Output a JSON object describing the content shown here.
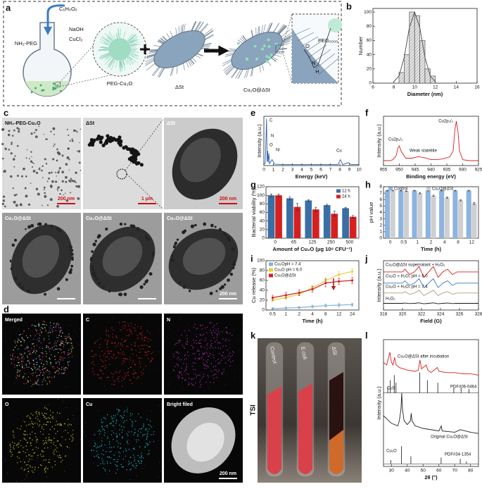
{
  "panels": {
    "a": {
      "label": "a",
      "texts": [
        "C₆H₈O₆",
        "NaOH",
        "CuCl₂",
        "NH₂-PEG",
        "PEG-Cu₂O",
        "ΔSt",
        "Cu₂O@ΔSt",
        "PEG₂₀₀₀",
        "O",
        "N",
        "H"
      ]
    },
    "b": {
      "label": "b",
      "chart": {
        "type": "histogram",
        "xlabel": "Diameter (nm)",
        "ylabel": "Number",
        "bins": [
          8.5,
          9,
          9.5,
          10,
          10.5,
          11,
          11.5,
          12
        ],
        "counts": [
          15,
          40,
          100,
          95,
          60,
          20,
          10
        ],
        "color": "#d9d9d9",
        "fit": {
          "x": [
            8,
            8.5,
            9,
            9.5,
            10,
            10.5,
            11,
            11.5,
            12
          ],
          "values": [
            2,
            10,
            36,
            78,
            100,
            78,
            36,
            10,
            2
          ],
          "color": "#555555"
        },
        "xlim": [
          6,
          16
        ],
        "xticks": [
          6,
          8,
          10,
          12,
          14,
          16
        ],
        "ylim": [
          0,
          105
        ],
        "yticks": [
          0,
          20,
          40,
          60,
          80,
          100
        ]
      }
    },
    "c": {
      "label": "c",
      "texts": [
        "NH₂-PEG-Cu₂O",
        "ΔSt",
        "ΔSt",
        "200 nm",
        "1 μm",
        "200 nm",
        "Cu₂O@ΔSt",
        "Cu₂O@ΔSt",
        "Cu₂O@ΔSt",
        "200 nm"
      ]
    },
    "d": {
      "label": "d",
      "texts": [
        "Merged",
        "C",
        "N",
        "O",
        "Cu",
        "Bright filed",
        "200 nm"
      ]
    },
    "e": {
      "label": "e",
      "chart": {
        "type": "spectrum",
        "xlabel": "Energy (keV)",
        "ylabel": "Intensity (a.u.)",
        "annotations": [
          "C",
          "N",
          "O",
          "Ni",
          "Cu"
        ],
        "series": [
          {
            "color": "#2a62b0",
            "x": [
              0,
              0.15,
              0.28,
              0.35,
              0.39,
              0.45,
              0.52,
              0.6,
              0.85,
              0.93,
              1.1,
              2,
              4,
              6,
              7.8,
              8.05,
              8.3,
              8.9,
              9.2,
              10
            ],
            "values": [
              2,
              5,
              95,
              8,
              30,
              6,
              25,
              4,
              12,
              10,
              3,
              2,
              2,
              2,
              2,
              12,
              2,
              6,
              2,
              2
            ]
          }
        ],
        "xlim": [
          0,
          10
        ],
        "xticks": [
          0,
          1,
          2,
          3,
          4,
          5,
          6,
          7,
          8,
          9,
          10
        ],
        "ylim": [
          0,
          100
        ]
      }
    },
    "f": {
      "label": "f",
      "chart": {
        "type": "spectrum",
        "xlabel": "Binding energy (eV)",
        "ylabel": "Intensity (a.u.)",
        "annotations": [
          "Cu2p₁/₂",
          "Cu2p₃/₂",
          "Weak statellite"
        ],
        "series": [
          {
            "color": "#d62020",
            "x": [
              955,
              953,
              952,
              951,
              950.5,
              950,
              949.5,
              948,
              946,
              944,
              942,
              940,
              938,
              936,
              934,
              933,
              932.5,
              932,
              931.5,
              931,
              930,
              928,
              925
            ],
            "values": [
              10,
              10,
              12,
              20,
              35,
              40,
              30,
              15,
              15,
              18,
              16,
              12,
              12,
              14,
              18,
              30,
              70,
              90,
              70,
              30,
              12,
              10,
              10
            ]
          }
        ],
        "xlim": [
          955,
          925
        ],
        "xticks": [
          955,
          950,
          945,
          940,
          935,
          930,
          925
        ],
        "ylim": [
          0,
          100
        ]
      }
    },
    "g": {
      "label": "g",
      "chart": {
        "type": "bar",
        "xlabel": "Amount of Cu₂O (μg 10⁸ CFU⁻¹)",
        "ylabel": "Bacterial viability (%)",
        "categories": [
          "0",
          "65",
          "125",
          "250",
          "500"
        ],
        "series": [
          {
            "name": "12 h",
            "color": "#3a6fa5",
            "values": [
              100,
              93,
              88,
              77,
              70
            ],
            "errors": [
              3,
              3,
              2,
              2,
              2
            ]
          },
          {
            "name": "24 h",
            "color": "#d62020",
            "values": [
              100,
              73,
              67,
              57,
              50
            ],
            "errors": [
              3,
              8,
              5,
              6,
              3
            ]
          }
        ],
        "ylim": [
          0,
          120
        ],
        "yticks": [
          0,
          20,
          40,
          60,
          80,
          100,
          120
        ]
      }
    },
    "h": {
      "label": "h",
      "chart": {
        "type": "bar",
        "xlabel": "Time (h)",
        "ylabel": "pH value",
        "categories": [
          "0",
          "0.5",
          "1",
          "2",
          "4",
          "8",
          "12"
        ],
        "series": [
          {
            "name": "Control",
            "color": "#8db4de",
            "values": [
              7.4,
              7.4,
              7.4,
              7.4,
              7.4,
              7.4,
              7.4
            ],
            "errors": [
              0.05,
              0.05,
              0.05,
              0.05,
              0.05,
              0.05,
              0.05
            ]
          },
          {
            "name": "Cu₂O@ΔSt",
            "color": "#cfcfcf",
            "values": [
              7.4,
              7.3,
              7.0,
              6.6,
              6.3,
              5.9,
              5.4
            ],
            "errors": [
              0.05,
              0.05,
              0.1,
              0.1,
              0.1,
              0.1,
              0.15
            ]
          }
        ],
        "ylim": [
          0,
          8
        ],
        "yticks": [
          0,
          1,
          2,
          3,
          4,
          5,
          6,
          7,
          8
        ]
      }
    },
    "i": {
      "label": "i",
      "chart": {
        "type": "line",
        "xlabel": "Time (h)",
        "ylabel": "Cu release (%)",
        "categories": [
          "0.5",
          "1",
          "2",
          "4",
          "8",
          "12",
          "24"
        ],
        "series": [
          {
            "name": "Cu₂OpH = 7.4",
            "color": "#7fb3d5",
            "values": [
              3,
              4,
              5,
              7,
              9,
              10,
              11
            ],
            "errors": [
              2,
              2,
              2,
              3,
              3,
              4,
              3
            ]
          },
          {
            "name": "Cu₂O pH = 6.0",
            "color": "#e8cf3a",
            "values": [
              20,
              25,
              32,
              45,
              60,
              72,
              78
            ],
            "errors": [
              3,
              3,
              3,
              5,
              5,
              6,
              6
            ]
          },
          {
            "name": "Cu₂O@ΔSt",
            "color": "#d62020",
            "values": [
              25,
              30,
              35,
              42,
              55,
              58,
              60
            ],
            "errors": [
              5,
              6,
              6,
              6,
              8,
              6,
              6
            ]
          }
        ],
        "ylim": [
          0,
          100
        ],
        "yticks": [
          0,
          20,
          40,
          60,
          80,
          100
        ]
      }
    },
    "j": {
      "label": "j",
      "chart": {
        "type": "spectrum",
        "xlabel": "Field (G)",
        "ylabel": "Intensity (a.u.)",
        "series": [
          {
            "name": "Cu₂O@ΔSt supernatant + H₂O₂",
            "color": "#d62020",
            "x": [
              318,
              320,
              320.25,
              320.75,
              321.25,
              321.75,
              322.25,
              322.75,
              323.25,
              323.75,
              324.25,
              324.75,
              325.25,
              325.75,
              328
            ],
            "values": [
              85,
              85,
              91,
              79,
              85,
              97,
              73,
              85,
              97,
              73,
              85,
              91,
              79,
              85,
              85
            ]
          },
          {
            "name": "Cu₂O + H₂O₂ pH = 6.0",
            "color": "#3a78c0",
            "x": [
              318,
              320,
              320.25,
              320.75,
              321.25,
              321.75,
              322.25,
              322.75,
              323.25,
              323.75,
              324.25,
              324.75,
              325.25,
              325.75,
              328
            ],
            "values": [
              60,
              60,
              65,
              55,
              60,
              70,
              50,
              60,
              70,
              50,
              60,
              65,
              55,
              60,
              60
            ]
          },
          {
            "name": "Cu₂O + H₂O₂ pH = 7.4",
            "color": "#b89a7a",
            "x": [
              318,
              320,
              320.25,
              320.75,
              321.25,
              321.75,
              322.25,
              322.75,
              323.25,
              323.75,
              324.25,
              324.75,
              325.25,
              325.75,
              328
            ],
            "values": [
              38,
              38,
              41,
              35,
              38,
              44,
              32,
              38,
              44,
              32,
              38,
              41,
              35,
              38,
              38
            ]
          },
          {
            "name": "H₂O₂",
            "color": "#111111",
            "x": [
              318,
              320,
              320.25,
              320.75,
              321.25,
              321.75,
              322.25,
              322.75,
              323.25,
              323.75,
              324.25,
              324.75,
              325.25,
              325.75,
              328
            ],
            "values": [
              15,
              15,
              15.5,
              14.5,
              15,
              16,
              14,
              15,
              16,
              14,
              15,
              15.5,
              14.5,
              15,
              15
            ]
          }
        ],
        "xlim": [
          318,
          328
        ],
        "xticks": [
          318,
          320,
          322,
          324,
          326,
          328
        ],
        "ylim": [
          0,
          110
        ]
      }
    },
    "k": {
      "label": "k",
      "texts": [
        "Control",
        "E.coli",
        "ΔSt",
        "TSI"
      ]
    },
    "l": {
      "label": "l",
      "chart": {
        "type": "spectrum",
        "xlabel": "2θ (°)",
        "ylabel": "Intensity (a.u.)",
        "series": [
          {
            "name": "Cu₂O@ΔSt after incubation",
            "color": "#d62020",
            "x": [
              25,
              27,
              28,
              29,
              30,
              31,
              32,
              33,
              35,
              40,
              45,
              47,
              48,
              49,
              52,
              53,
              55,
              59,
              60,
              65,
              70,
              75,
              80,
              85
            ],
            "values": [
              82,
              80,
              85,
              90,
              82,
              80,
              86,
              80,
              78,
              76,
              75,
              76,
              84,
              77,
              80,
              76,
              74,
              78,
              75,
              74,
              74,
              73,
              73,
              72
            ]
          },
          {
            "name": "Original Cu₂O@ΔSt",
            "color": "#222222",
            "x": [
              25,
              30,
              34,
              35,
              36,
              36.5,
              37,
              38,
              40,
              42,
              42.5,
              43,
              45,
              50,
              60,
              61.5,
              62,
              70,
              73.5,
              80,
              85
            ],
            "values": [
              40,
              34,
              32,
              36,
              45,
              58,
              45,
              36,
              33,
              36,
              42,
              36,
              32,
              30,
              28,
              32,
              28,
              27,
              29,
              27,
              26
            ]
          }
        ],
        "sticks": [
          {
            "name": "CuS",
            "pdf": "PDF#06-0464",
            "x": [
              27.7,
              29.3,
              31.8,
              32.9,
              47.9,
              52.7,
              59.3,
              69.4,
              74,
              79
            ],
            "values": [
              5,
              10,
              14,
              8,
              16,
              10,
              8,
              4,
              4,
              3
            ]
          },
          {
            "name": "Cu₂O",
            "pdf": "PDF#34-1354",
            "x": [
              29.6,
              36.4,
              42.3,
              61.4,
              73.5,
              77.4
            ],
            "values": [
              3,
              14,
              6,
              5,
              4,
              2
            ]
          }
        ],
        "xlim": [
          25,
          85
        ],
        "xticks": [
          30,
          40,
          50,
          60,
          70,
          80
        ],
        "ylim": [
          0,
          100
        ]
      }
    }
  }
}
